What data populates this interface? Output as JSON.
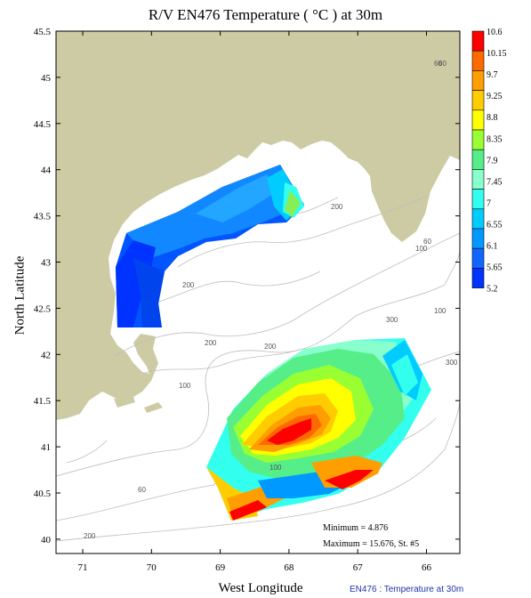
{
  "title": "R/V EN476 Temperature ( °C ) at 30m",
  "x_axis": {
    "label": "West Longitude",
    "ticks": [
      "71",
      "70",
      "69",
      "68",
      "67",
      "66"
    ]
  },
  "y_axis": {
    "label": "North Latitude",
    "ticks": [
      "45.5",
      "45",
      "44.5",
      "44",
      "43.5",
      "43",
      "42.5",
      "42",
      "41.5",
      "41",
      "40.5",
      "40"
    ]
  },
  "colorbar": {
    "labels": [
      "10.6",
      "10.15",
      "9.7",
      "9.25",
      "8.8",
      "8.35",
      "7.9",
      "7.45",
      "7",
      "6.55",
      "6.1",
      "5.65",
      "5.2"
    ],
    "colors": [
      "#ff0000",
      "#ff6a00",
      "#ff9e00",
      "#ffcc00",
      "#ffff00",
      "#99ff33",
      "#55ee88",
      "#88ffcc",
      "#33ffee",
      "#00ccff",
      "#0099ff",
      "#1166ff",
      "#0033ff"
    ]
  },
  "land_color": "#cccba4",
  "bathymetry_labels": [
    "60",
    "200",
    "60",
    "100",
    "200",
    "100",
    "200",
    "200",
    "100",
    "300",
    "300",
    "100",
    "60",
    "60",
    "200"
  ],
  "stats": {
    "minimum": "Minimum = 4.876",
    "maximum": "Maximum = 15.676, St. #5"
  },
  "footer": "EN476 : Temperature at 30m"
}
